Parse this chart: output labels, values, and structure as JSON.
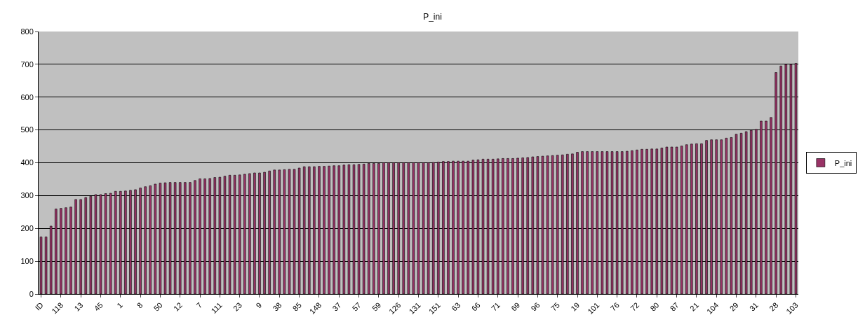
{
  "chart_data": {
    "type": "bar",
    "title": "P_ini",
    "categories": [
      "ID",
      null,
      null,
      null,
      "118",
      null,
      null,
      null,
      "13",
      null,
      null,
      null,
      "45",
      null,
      null,
      null,
      "1",
      null,
      null,
      null,
      "8",
      null,
      null,
      null,
      "50",
      null,
      null,
      null,
      "12",
      null,
      null,
      null,
      "7",
      null,
      null,
      null,
      "111",
      null,
      null,
      null,
      "23",
      null,
      null,
      null,
      "9",
      null,
      null,
      null,
      "38",
      null,
      null,
      null,
      "85",
      null,
      null,
      null,
      "148",
      null,
      null,
      null,
      "37",
      null,
      null,
      null,
      "57",
      null,
      null,
      null,
      "59",
      null,
      null,
      null,
      "126",
      null,
      null,
      null,
      "131",
      null,
      null,
      null,
      "151",
      null,
      null,
      null,
      "63",
      null,
      null,
      null,
      "66",
      null,
      null,
      null,
      "71",
      null,
      null,
      null,
      "69",
      null,
      null,
      null,
      "96",
      null,
      null,
      null,
      "75",
      null,
      null,
      null,
      "19",
      null,
      null,
      null,
      "101",
      null,
      null,
      null,
      "76",
      null,
      null,
      null,
      "72",
      null,
      null,
      null,
      "80",
      null,
      null,
      null,
      "87",
      null,
      null,
      null,
      "21",
      null,
      null,
      null,
      "104",
      null,
      null,
      null,
      "29",
      null,
      null,
      null,
      "31",
      null,
      null,
      null,
      "28",
      null,
      null,
      null,
      "103"
    ],
    "series": [
      {
        "name": "P_ini",
        "color": "#993366",
        "values": [
          174,
          174,
          207,
          259,
          261,
          263,
          265,
          288,
          288,
          294,
          298,
          303,
          303,
          306,
          307,
          313,
          313,
          314,
          316,
          318,
          323,
          327,
          330,
          335,
          338,
          339,
          340,
          340,
          340,
          340,
          340,
          346,
          351,
          351,
          352,
          355,
          356,
          359,
          362,
          362,
          363,
          365,
          367,
          369,
          369,
          371,
          375,
          378,
          378,
          379,
          380,
          380,
          384,
          388,
          388,
          388,
          389,
          389,
          390,
          391,
          391,
          393,
          394,
          394,
          395,
          396,
          398,
          398,
          398,
          400,
          400,
          400,
          400,
          400,
          400,
          400,
          400,
          400,
          400,
          401,
          402,
          404,
          404,
          405,
          405,
          405,
          405,
          408,
          409,
          411,
          411,
          411,
          412,
          413,
          413,
          413,
          414,
          415,
          416,
          418,
          419,
          420,
          421,
          422,
          423,
          424,
          426,
          427,
          432,
          434,
          434,
          434,
          434,
          434,
          434,
          434,
          434,
          434,
          435,
          437,
          439,
          441,
          441,
          442,
          442,
          445,
          448,
          448,
          448,
          451,
          455,
          457,
          458,
          458,
          468,
          470,
          470,
          470,
          475,
          477,
          487,
          490,
          495,
          499,
          502,
          527,
          527,
          538,
          675,
          695,
          700,
          700,
          703
        ]
      }
    ],
    "ylim": [
      0,
      800
    ],
    "yticks": [
      0,
      100,
      200,
      300,
      400,
      500,
      600,
      700,
      800
    ],
    "grid": "y",
    "legend": "right"
  }
}
